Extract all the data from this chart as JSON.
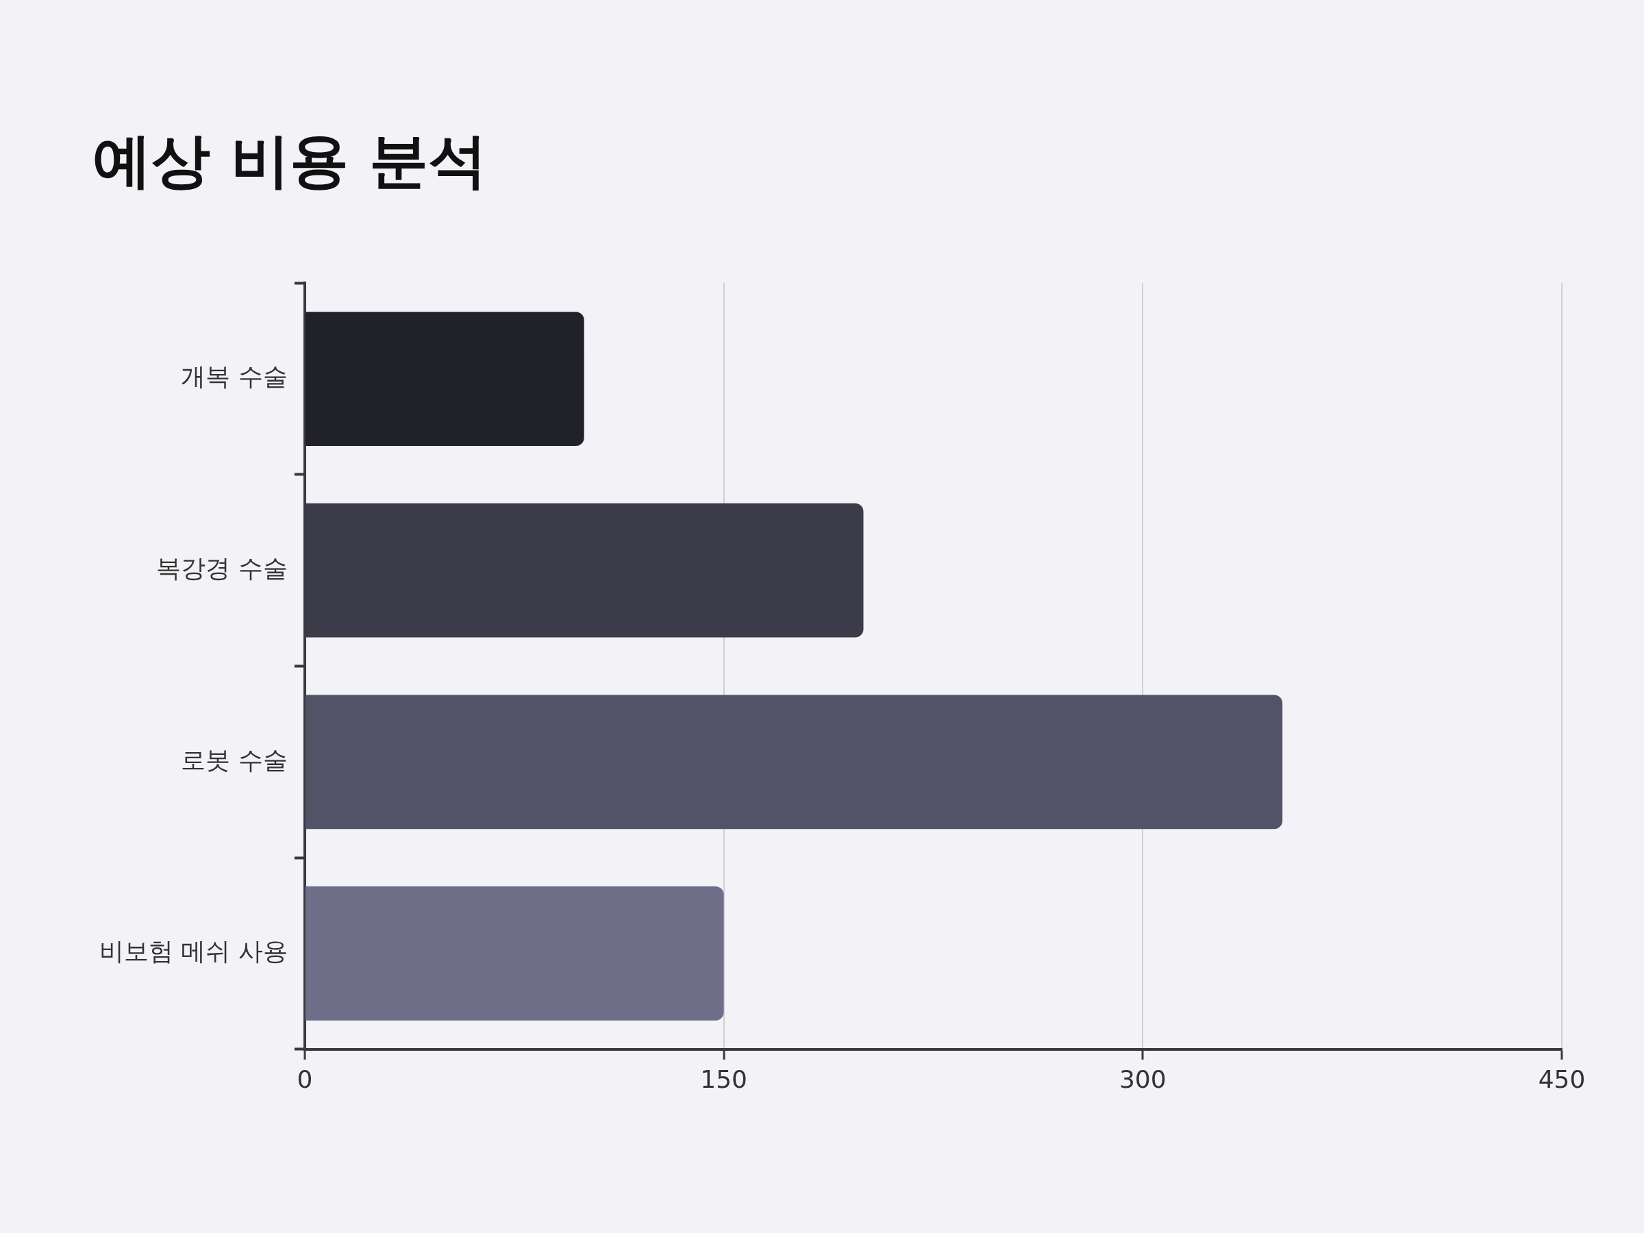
{
  "chart_data": {
    "type": "bar",
    "title": "예상 비용 분석",
    "orientation": "horizontal",
    "categories": [
      "개복 수술",
      "복강경 수술",
      "로봇 수술",
      "비보험 메쉬 사용"
    ],
    "values": [
      100,
      200,
      350,
      150
    ],
    "colors": [
      "#212129",
      "#3c3b4a",
      "#535367",
      "#6e6e88"
    ],
    "xlim": [
      0,
      450
    ],
    "xticks": [
      0,
      150,
      300,
      450
    ],
    "grid": "x"
  }
}
